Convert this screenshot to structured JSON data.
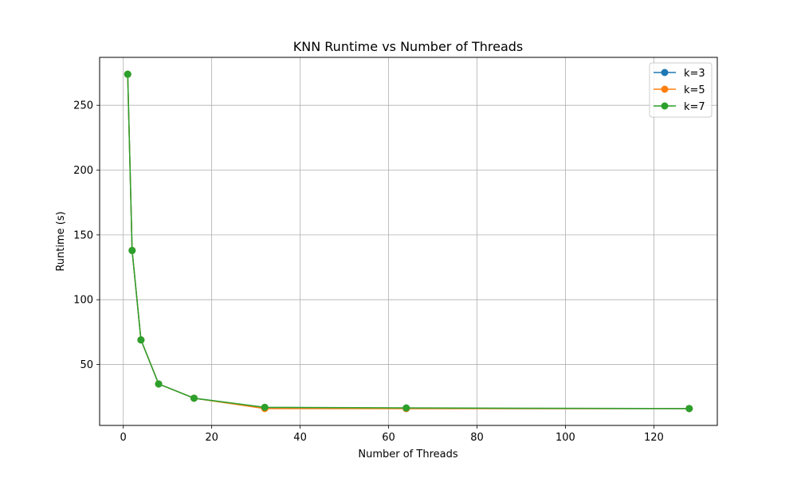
{
  "chart_data": {
    "type": "line",
    "title": "KNN Runtime vs Number of Threads",
    "xlabel": "Number of Threads",
    "ylabel": "Runtime (s)",
    "x": [
      1,
      2,
      4,
      8,
      16,
      32,
      64,
      128
    ],
    "xlim": [
      -5.35,
      134.35
    ],
    "ylim": [
      3,
      287
    ],
    "xticks": [
      0,
      20,
      40,
      60,
      80,
      100,
      120
    ],
    "yticks": [
      50,
      100,
      150,
      200,
      250
    ],
    "grid": true,
    "legend_position": "top-right",
    "series": [
      {
        "name": "k=3",
        "color": "#1f77b4",
        "values": [
          274,
          138,
          69,
          35,
          24,
          16.5,
          16,
          16
        ]
      },
      {
        "name": "k=5",
        "color": "#ff7f0e",
        "values": [
          274,
          138,
          69,
          35,
          24,
          16,
          16,
          16
        ]
      },
      {
        "name": "k=7",
        "color": "#2ca02c",
        "values": [
          274,
          138,
          69,
          35,
          24,
          17,
          16.5,
          16
        ]
      }
    ]
  }
}
